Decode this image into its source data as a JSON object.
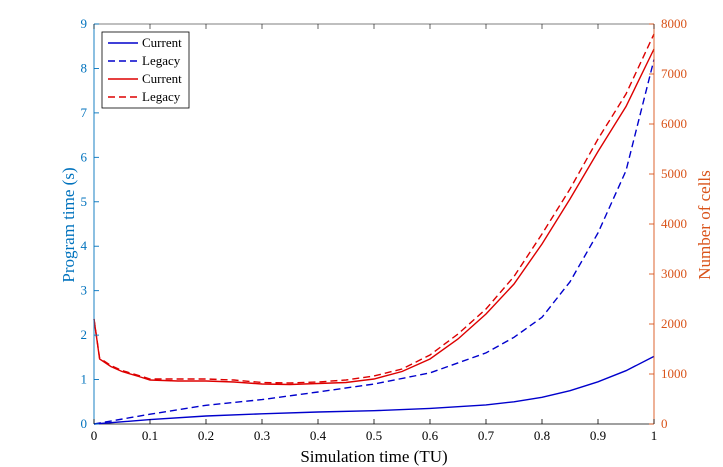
{
  "chart_data": {
    "type": "line",
    "xlabel": "Simulation time (TU)",
    "ylabel_left": "Program time (s)",
    "ylabel_right": "Number of cells",
    "xlim": [
      0,
      1
    ],
    "ylim_left": [
      0,
      9
    ],
    "ylim_right": [
      0,
      8000
    ],
    "x_ticks": [
      "0",
      "0.1",
      "0.2",
      "0.3",
      "0.4",
      "0.5",
      "0.6",
      "0.7",
      "0.8",
      "0.9",
      "1"
    ],
    "y_ticks_left": [
      "0",
      "1",
      "2",
      "3",
      "4",
      "5",
      "6",
      "7",
      "8",
      "9"
    ],
    "y_ticks_right": [
      "0",
      "1000",
      "2000",
      "3000",
      "4000",
      "5000",
      "6000",
      "7000",
      "8000"
    ],
    "grid": false,
    "legend_placement": "top-left",
    "colors": {
      "left_axis": "#0072BD",
      "right_axis": "#D95319",
      "blue_series": "#0000CC",
      "red_series": "#DD0000"
    },
    "series": [
      {
        "name": "Current",
        "axis": "left",
        "style": "solid",
        "color": "#0000CC",
        "x": [
          0,
          0.1,
          0.2,
          0.3,
          0.4,
          0.5,
          0.6,
          0.7,
          0.75,
          0.8,
          0.85,
          0.9,
          0.95,
          1.0
        ],
        "y": [
          0,
          0.1,
          0.18,
          0.23,
          0.27,
          0.3,
          0.35,
          0.43,
          0.5,
          0.6,
          0.75,
          0.95,
          1.2,
          1.52
        ]
      },
      {
        "name": "Legacy",
        "axis": "left",
        "style": "dashed",
        "color": "#0000CC",
        "x": [
          0,
          0.1,
          0.2,
          0.3,
          0.4,
          0.5,
          0.6,
          0.7,
          0.75,
          0.8,
          0.85,
          0.9,
          0.95,
          1.0
        ],
        "y": [
          0,
          0.22,
          0.42,
          0.55,
          0.72,
          0.9,
          1.15,
          1.6,
          1.95,
          2.4,
          3.2,
          4.3,
          5.7,
          8.2
        ]
      },
      {
        "name": "Current",
        "axis": "right",
        "style": "solid",
        "color": "#DD0000",
        "x": [
          0,
          0.01,
          0.03,
          0.05,
          0.08,
          0.1,
          0.15,
          0.2,
          0.25,
          0.3,
          0.35,
          0.4,
          0.45,
          0.5,
          0.55,
          0.6,
          0.65,
          0.7,
          0.75,
          0.8,
          0.85,
          0.9,
          0.95,
          1.0
        ],
        "y": [
          2100,
          1300,
          1150,
          1050,
          950,
          880,
          860,
          860,
          840,
          800,
          790,
          810,
          830,
          900,
          1050,
          1300,
          1700,
          2200,
          2800,
          3600,
          4500,
          5450,
          6350,
          7500
        ]
      },
      {
        "name": "Legacy",
        "axis": "right",
        "style": "dashed",
        "color": "#DD0000",
        "x": [
          0,
          0.01,
          0.03,
          0.05,
          0.08,
          0.1,
          0.15,
          0.2,
          0.25,
          0.3,
          0.35,
          0.4,
          0.45,
          0.5,
          0.55,
          0.6,
          0.65,
          0.7,
          0.75,
          0.8,
          0.85,
          0.9,
          0.95,
          1.0
        ],
        "y": [
          2100,
          1320,
          1170,
          1070,
          970,
          900,
          900,
          900,
          880,
          830,
          820,
          840,
          880,
          960,
          1100,
          1380,
          1800,
          2300,
          2950,
          3800,
          4700,
          5700,
          6600,
          7800
        ]
      }
    ]
  }
}
